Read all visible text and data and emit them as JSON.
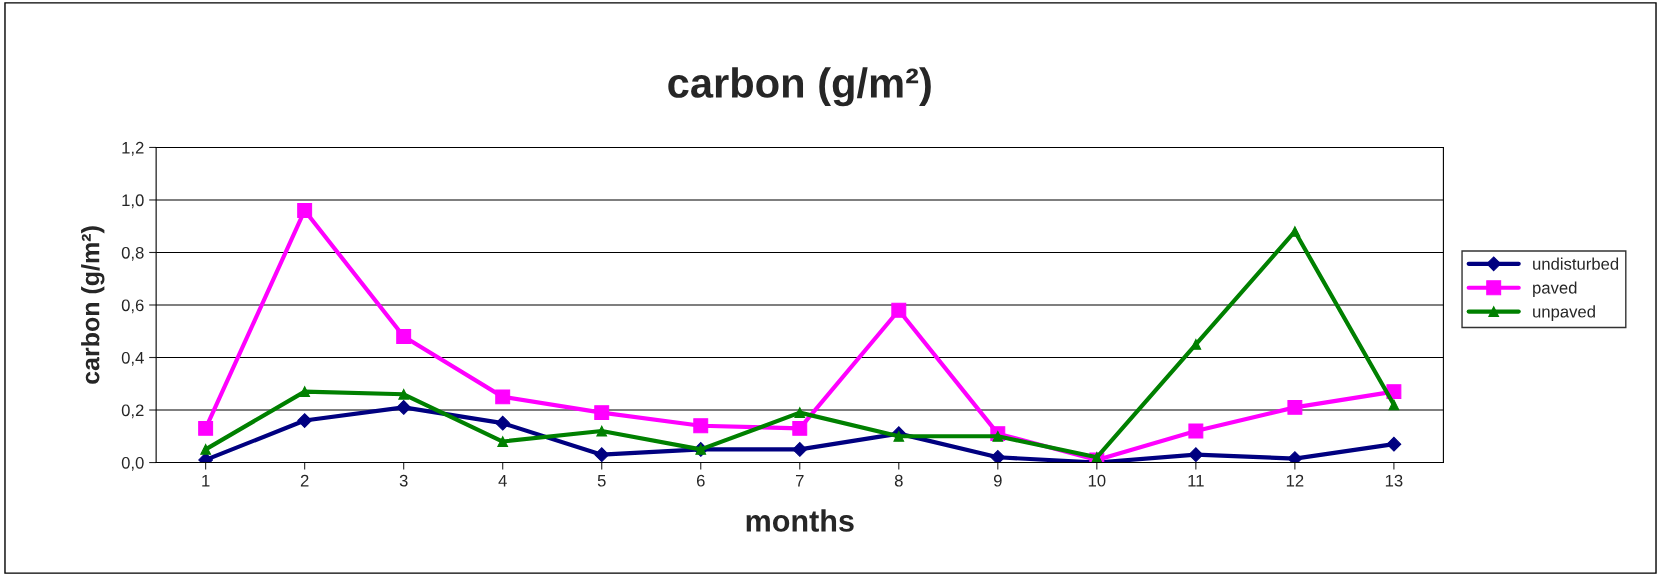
{
  "chart_data": {
    "type": "line",
    "title": "carbon (g/m²)",
    "xlabel": "months",
    "ylabel": "carbon (g/m²)",
    "categories": [
      "1",
      "2",
      "3",
      "4",
      "5",
      "6",
      "7",
      "8",
      "9",
      "10",
      "11",
      "12",
      "13"
    ],
    "series": [
      {
        "name": "undisturbed",
        "color": "#000080",
        "marker": "diamond",
        "values": [
          0.01,
          0.16,
          0.21,
          0.15,
          0.03,
          0.05,
          0.05,
          0.11,
          0.02,
          0.0,
          0.03,
          0.015,
          0.07
        ]
      },
      {
        "name": "paved",
        "color": "#ff00ff",
        "marker": "square",
        "values": [
          0.13,
          0.96,
          0.48,
          0.25,
          0.19,
          0.14,
          0.13,
          0.58,
          0.11,
          0.01,
          0.12,
          0.21,
          0.27
        ]
      },
      {
        "name": "unpaved",
        "color": "#008000",
        "marker": "triangle",
        "values": [
          0.05,
          0.27,
          0.26,
          0.08,
          0.12,
          0.05,
          0.19,
          0.1,
          0.1,
          0.02,
          0.45,
          0.88,
          0.22
        ]
      }
    ],
    "ylim": [
      0,
      1.2
    ],
    "yticks": [
      {
        "value": 0,
        "label": "0,0"
      },
      {
        "value": 0.2,
        "label": "0,2"
      },
      {
        "value": 0.4,
        "label": "0,4"
      },
      {
        "value": 0.6,
        "label": "0,6"
      },
      {
        "value": 0.8,
        "label": "0,8"
      },
      {
        "value": 1.0,
        "label": "1,0"
      },
      {
        "value": 1.2,
        "label": "1,2"
      }
    ],
    "grid": "y",
    "legend": "right",
    "line_style": "solid"
  }
}
